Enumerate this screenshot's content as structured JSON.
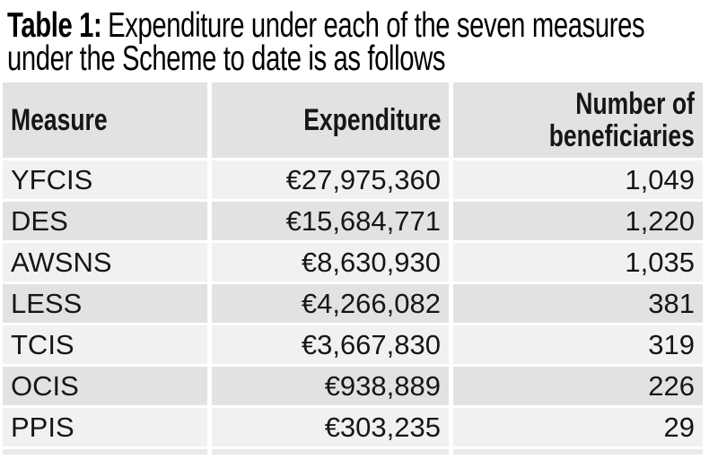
{
  "caption": {
    "label": "Table 1:",
    "line1": "Expenditure under each of the seven measures",
    "line2": "under the Scheme to date is as follows"
  },
  "table": {
    "headers": [
      {
        "label": "Measure"
      },
      {
        "label": "Expenditure"
      },
      {
        "label": "Number of",
        "label2": "beneficiaries"
      }
    ],
    "rows": [
      {
        "measure": "YFCIS",
        "expenditure": "€27,975,360",
        "beneficiaries": "1,049"
      },
      {
        "measure": "DES",
        "expenditure": "€15,684,771",
        "beneficiaries": "1,220"
      },
      {
        "measure": "AWSNS",
        "expenditure": "€8,630,930",
        "beneficiaries": "1,035"
      },
      {
        "measure": "LESS",
        "expenditure": "€4,266,082",
        "beneficiaries": "381"
      },
      {
        "measure": "TCIS",
        "expenditure": "€3,667,830",
        "beneficiaries": "319"
      },
      {
        "measure": "OCIS",
        "expenditure": "€938,889",
        "beneficiaries": "226"
      },
      {
        "measure": "PPIS",
        "expenditure": "€303,235",
        "beneficiaries": "29"
      }
    ]
  },
  "chart_data": {
    "type": "table",
    "title": "Table 1: Expenditure under each of the seven measures under the Scheme to date is as follows",
    "columns": [
      "Measure",
      "Expenditure",
      "Number of beneficiaries"
    ],
    "rows": [
      [
        "YFCIS",
        27975360,
        1049
      ],
      [
        "DES",
        15684771,
        1220
      ],
      [
        "AWSNS",
        8630930,
        1035
      ],
      [
        "LESS",
        4266082,
        381
      ],
      [
        "TCIS",
        3667830,
        319
      ],
      [
        "OCIS",
        938889,
        226
      ],
      [
        "PPIS",
        303235,
        29
      ]
    ],
    "currency": "EUR"
  },
  "colors": {
    "header_bg": "#e2e2e0",
    "row_light": "#f1f1ef",
    "row_dark": "#e2e2e0",
    "text": "#161616",
    "page_bg": "#ffffff"
  }
}
